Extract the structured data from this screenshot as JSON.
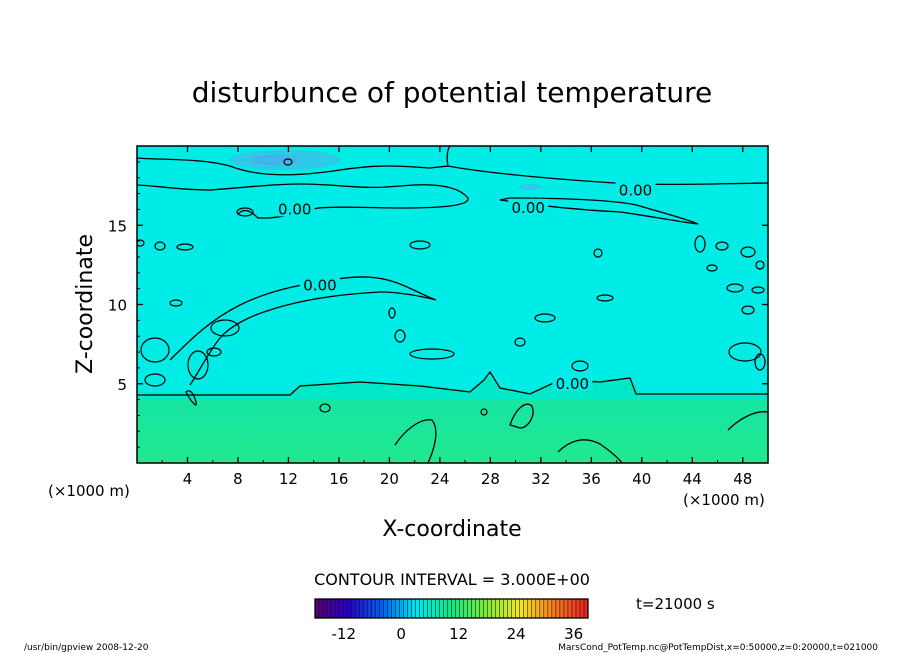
{
  "chart_data": {
    "type": "heatmap",
    "title": "disturbunce of potential temperature",
    "xlabel": "X-coordinate",
    "ylabel": "Z-coordinate",
    "x_unit_left": "(×1000 m)",
    "x_unit_right": "(×1000 m)",
    "xlim": [
      0,
      50
    ],
    "ylim": [
      0,
      20
    ],
    "x_ticks": [
      4,
      8,
      12,
      16,
      20,
      24,
      28,
      32,
      36,
      40,
      44,
      48
    ],
    "y_ticks": [
      5,
      10,
      15
    ],
    "contour_interval_text": "CONTOUR INTERVAL = 3.000E+00",
    "time_text": "t=21000 s",
    "colorbar": {
      "ticks": [
        -12,
        0,
        12,
        24,
        36
      ],
      "min": -18,
      "max": 39
    },
    "contour_labels": [
      {
        "text": "0.00",
        "x": 12.5,
        "z": 16.0
      },
      {
        "text": "0.00",
        "x": 14.5,
        "z": 11.2
      },
      {
        "text": "0.00",
        "x": 31.0,
        "z": 16.1
      },
      {
        "text": "0.00",
        "x": 39.5,
        "z": 17.2
      },
      {
        "text": "0.00",
        "x": 34.5,
        "z": 5.0
      }
    ],
    "regions": [
      {
        "name": "upper",
        "z": [
          4.5,
          20
        ],
        "value": 0,
        "color": "#00ece6"
      },
      {
        "name": "lower",
        "z": [
          0,
          4.5
        ],
        "value": 3,
        "color": "#1ee89a"
      }
    ]
  },
  "footer": {
    "left": "/usr/bin/gpview   2008-12-20",
    "right": "MarsCond_PotTemp.nc@PotTempDist,x=0:50000,z=0:20000,t=021000"
  },
  "colors": {
    "upper": "#00ece6",
    "lower": "#1ee89a",
    "cold_patch": "#2ec9e6"
  }
}
